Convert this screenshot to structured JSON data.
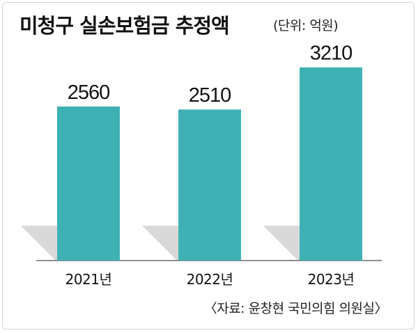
{
  "header": {
    "title": "미청구 실손보험금 추정액",
    "unit": "(단위: 억원)"
  },
  "footer": {
    "source": "〈자료: 윤창현 국민의힘 의원실〉"
  },
  "chart_data": {
    "type": "bar",
    "categories": [
      "2021년",
      "2022년",
      "2023년"
    ],
    "values": [
      2560,
      2510,
      3210
    ],
    "value_labels": [
      "2560",
      "2510",
      "3210"
    ],
    "title": "미청구 실손보험금 추정액",
    "unit": "(단위: 억원)",
    "ylim": [
      0,
      3450
    ],
    "grid": false,
    "legend": "none",
    "bar_color": "#3fb1b5",
    "shadow_color": "#d9d9d9"
  }
}
